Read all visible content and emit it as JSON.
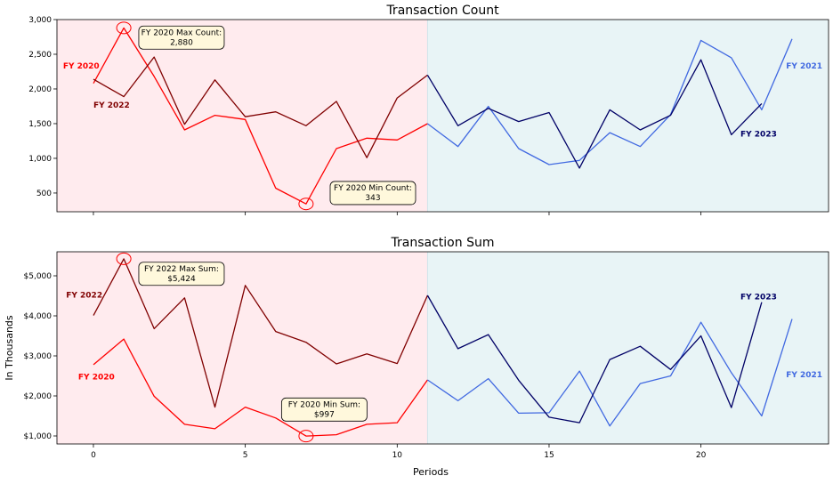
{
  "xlabel": "Periods",
  "ylabel": "In Thousands",
  "chart_data": [
    {
      "type": "line",
      "title": "Transaction Count",
      "xlim": [
        -1.2,
        24.2
      ],
      "ylim": [
        230,
        3000
      ],
      "yticks": [
        500,
        1000,
        1500,
        2000,
        2500,
        3000
      ],
      "ytick_labels": [
        "500",
        "1,000",
        "1,500",
        "2,000",
        "2,500",
        "3,000"
      ],
      "xticks": [
        0,
        5,
        10,
        15,
        20
      ],
      "xtick_labels": [
        "0",
        "5",
        "10",
        "15",
        "20"
      ],
      "show_xtick_labels": false,
      "regions": [
        {
          "from": -1.2,
          "to": 11,
          "color": "#ffebee"
        },
        {
          "from": 11,
          "to": 24.2,
          "color": "#e8f4f6"
        }
      ],
      "series": [
        {
          "name": "FY 2020",
          "color": "#ff0000",
          "x": [
            0,
            1,
            2,
            3,
            4,
            5,
            6,
            7,
            8,
            9,
            10,
            11
          ],
          "values": [
            2080,
            2880,
            2180,
            1410,
            1620,
            1560,
            570,
            343,
            1140,
            1290,
            1265,
            1500
          ]
        },
        {
          "name": "FY 2022",
          "color": "#800000",
          "x": [
            0,
            1,
            2,
            3,
            4,
            5,
            6,
            7,
            8,
            9,
            10,
            11
          ],
          "values": [
            2140,
            1890,
            2460,
            1490,
            2130,
            1600,
            1670,
            1470,
            1820,
            1010,
            1870,
            2200
          ]
        },
        {
          "name": "FY 2021",
          "color": "#4169e1",
          "x": [
            11,
            12,
            13,
            14,
            15,
            16,
            17,
            18,
            19,
            20,
            21,
            22,
            23
          ],
          "values": [
            1500,
            1170,
            1750,
            1140,
            910,
            970,
            1370,
            1170,
            1630,
            2700,
            2450,
            1700,
            2720
          ]
        },
        {
          "name": "FY 2023",
          "color": "#000066",
          "x": [
            11,
            12,
            13,
            14,
            15,
            16,
            17,
            18,
            19,
            20,
            21,
            22
          ],
          "values": [
            2200,
            1470,
            1720,
            1530,
            1660,
            860,
            1700,
            1410,
            1620,
            2420,
            1340,
            1790
          ]
        }
      ],
      "series_labels": [
        {
          "text": "FY 2020",
          "color": "#ff0000",
          "x": -1.0,
          "y": 2330
        },
        {
          "text": "FY 2022",
          "color": "#800000",
          "x": 0.0,
          "y": 1770
        },
        {
          "text": "FY 2021",
          "color": "#4169e1",
          "x": 22.8,
          "y": 2330
        },
        {
          "text": "FY 2023",
          "color": "#000066",
          "x": 21.3,
          "y": 1350
        }
      ],
      "annotations": [
        {
          "lines": [
            "FY 2020 Max Count:",
            "2,880"
          ],
          "x": 1,
          "y": 2880,
          "box_x": 2.9,
          "box_y": 2740
        },
        {
          "lines": [
            "FY 2020 Min Count:",
            "343"
          ],
          "x": 7,
          "y": 343,
          "box_x": 9.2,
          "box_y": 500
        }
      ]
    },
    {
      "type": "line",
      "title": "Transaction Sum",
      "xlim": [
        -1.2,
        24.2
      ],
      "ylim": [
        800,
        5600
      ],
      "yticks": [
        1000,
        2000,
        3000,
        4000,
        5000
      ],
      "ytick_labels": [
        "$1,000",
        "$2,000",
        "$3,000",
        "$4,000",
        "$5,000"
      ],
      "xticks": [
        0,
        5,
        10,
        15,
        20
      ],
      "xtick_labels": [
        "0",
        "5",
        "10",
        "15",
        "20"
      ],
      "show_xtick_labels": true,
      "regions": [
        {
          "from": -1.2,
          "to": 11,
          "color": "#ffebee"
        },
        {
          "from": 11,
          "to": 24.2,
          "color": "#e8f4f6"
        }
      ],
      "series": [
        {
          "name": "FY 2020",
          "color": "#ff0000",
          "x": [
            0,
            1,
            2,
            3,
            4,
            5,
            6,
            7,
            8,
            9,
            10,
            11
          ],
          "values": [
            2780,
            3420,
            1990,
            1290,
            1180,
            1720,
            1450,
            997,
            1030,
            1290,
            1330,
            2400
          ]
        },
        {
          "name": "FY 2022",
          "color": "#800000",
          "x": [
            0,
            1,
            2,
            3,
            4,
            5,
            6,
            7,
            8,
            9,
            10,
            11
          ],
          "values": [
            4010,
            5424,
            3680,
            4450,
            1720,
            4760,
            3610,
            3340,
            2800,
            3050,
            2810,
            4510
          ]
        },
        {
          "name": "FY 2021",
          "color": "#4169e1",
          "x": [
            11,
            12,
            13,
            14,
            15,
            16,
            17,
            18,
            19,
            20,
            21,
            22,
            23
          ],
          "values": [
            2400,
            1880,
            2430,
            1570,
            1580,
            2620,
            1250,
            2310,
            2500,
            3840,
            2580,
            1500,
            3920
          ]
        },
        {
          "name": "FY 2023",
          "color": "#000066",
          "x": [
            11,
            12,
            13,
            14,
            15,
            16,
            17,
            18,
            19,
            20,
            21,
            22
          ],
          "values": [
            4510,
            3180,
            3530,
            2390,
            1470,
            1330,
            2910,
            3240,
            2660,
            3500,
            1710,
            4340
          ]
        }
      ],
      "series_labels": [
        {
          "text": "FY 2022",
          "color": "#800000",
          "x": -0.9,
          "y": 4520
        },
        {
          "text": "FY 2020",
          "color": "#ff0000",
          "x": -0.5,
          "y": 2480
        },
        {
          "text": "FY 2023",
          "color": "#000066",
          "x": 21.3,
          "y": 4480
        },
        {
          "text": "FY 2021",
          "color": "#4169e1",
          "x": 22.8,
          "y": 2530
        }
      ],
      "annotations": [
        {
          "lines": [
            "FY 2022 Max Sum:",
            "$5,424"
          ],
          "x": 1,
          "y": 5424,
          "box_x": 2.9,
          "box_y": 5050
        },
        {
          "lines": [
            "FY 2020 Min Sum:",
            "$997"
          ],
          "x": 7,
          "y": 997,
          "box_x": 7.6,
          "box_y": 1660
        }
      ]
    }
  ]
}
